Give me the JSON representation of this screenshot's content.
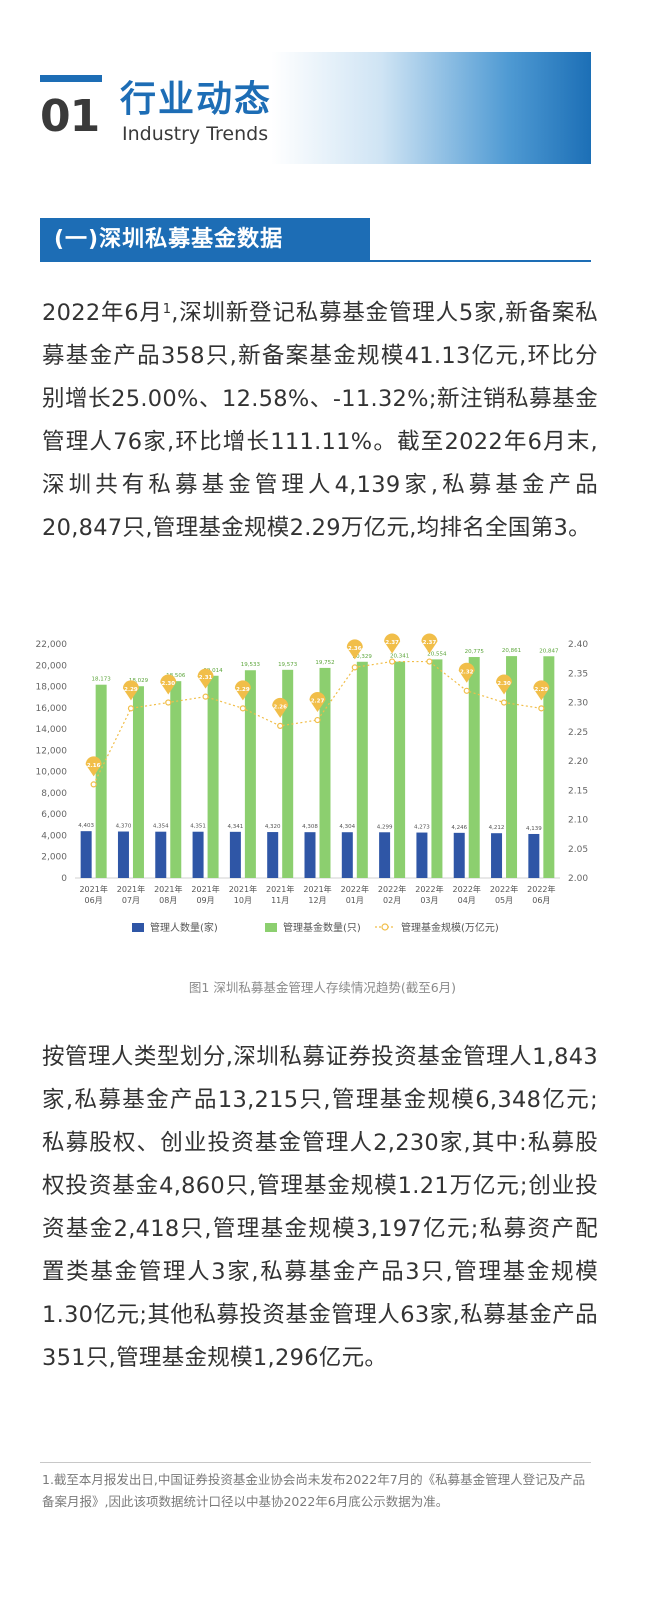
{
  "header": {
    "number": "01",
    "title_cn": "行业动态",
    "title_en": "Industry Trends"
  },
  "subheading": "(一)深圳私募基金数据",
  "paragraph1": {
    "lead": "2022年6月",
    "footnote_ref": "1",
    "body": ",深圳新登记私募基金管理人5家,新备案私募基金产品358只,新备案基金规模41.13亿元,环比分别增长25.00%、12.58%、-11.32%;新注销私募基金管理人76家,环比增长111.11%。截至2022年6月末,深圳共有私募基金管理人4,139家,私募基金产品20,847只,管理基金规模2.29万亿元,均排名全国第3。"
  },
  "paragraph2": "按管理人类型划分,深圳私募证券投资基金管理人1,843家,私募基金产品13,215只,管理基金规模6,348亿元;私募股权、创业投资基金管理人2,230家,其中:私募股权投资基金4,860只,管理基金规模1.21万亿元;创业投资基金2,418只,管理基金规模3,197亿元;私募资产配置类基金管理人3家,私募基金产品3只,管理基金规模1.30亿元;其他私募投资基金管理人63家,私募基金产品351只,管理基金规模1,296亿元。",
  "chart_caption": "图1 深圳私募基金管理人存续情况趋势(截至6月)",
  "footnote": "1.截至本月报发出日,中国证券投资基金业协会尚未发布2022年7月的《私募基金管理人登记及产品备案月报》,因此该项数据统计口径以中基协2022年6月底公示数据为准。",
  "colors": {
    "manager_bar": "#2f56a6",
    "fund_bar": "#8ccf6f",
    "scale_line": "#f1be49",
    "accent": "#1d6db5"
  },
  "chart_data": {
    "type": "bar",
    "categories": [
      "2021年\n06月",
      "2021年\n07月",
      "2021年\n08月",
      "2021年\n09月",
      "2021年\n10月",
      "2021年\n11月",
      "2021年\n12月",
      "2022年\n01月",
      "2022年\n02月",
      "2022年\n03月",
      "2022年\n04月",
      "2022年\n05月",
      "2022年\n06月"
    ],
    "series": [
      {
        "name": "管理人数量(家)",
        "axis": "left",
        "type": "bar",
        "values": [
          4403,
          4370,
          4354,
          4351,
          4341,
          4320,
          4308,
          4304,
          4299,
          4273,
          4246,
          4212,
          4139
        ],
        "labels": [
          "4,403",
          "4,370",
          "4,354",
          "4,351",
          "4,341",
          "4,320",
          "4,308",
          "4,304",
          "4,299",
          "4,273",
          "4,246",
          "4,212",
          "4,139"
        ]
      },
      {
        "name": "管理基金数量(只)",
        "axis": "left",
        "type": "bar",
        "values": [
          18173,
          18029,
          18506,
          19014,
          19533,
          19573,
          19752,
          20329,
          20341,
          20554,
          20775,
          20861,
          20847
        ],
        "labels": [
          "18,173",
          "18,029",
          "18,506",
          "19,014",
          "19,533",
          "19,573",
          "19,752",
          "20,329",
          "20,341",
          "20,554",
          "20,775",
          "20,861",
          "20,847"
        ]
      },
      {
        "name": "管理基金规模(万亿元)",
        "axis": "right",
        "type": "line",
        "values": [
          2.16,
          2.29,
          2.3,
          2.31,
          2.29,
          2.26,
          2.27,
          2.36,
          2.37,
          2.37,
          2.32,
          2.3,
          2.29
        ],
        "labels": [
          "2.16",
          "2.29",
          "2.30",
          "2.31",
          "2.29",
          "2.26",
          "2.27",
          "2.36",
          "2.37",
          "2.37",
          "2.32",
          "2.30",
          "2.29"
        ]
      }
    ],
    "y_left": {
      "min": 0,
      "max": 22000,
      "step": 2000,
      "ticks": [
        "0",
        "2,000",
        "4,000",
        "6,000",
        "8,000",
        "10,000",
        "12,000",
        "14,000",
        "16,000",
        "18,000",
        "20,000",
        "22,000"
      ]
    },
    "y_right": {
      "min": 2.0,
      "max": 2.4,
      "step": 0.05,
      "ticks": [
        "2.00",
        "2.05",
        "2.10",
        "2.15",
        "2.20",
        "2.25",
        "2.30",
        "2.35",
        "2.40"
      ]
    },
    "grid": false,
    "legend_position": "bottom"
  }
}
